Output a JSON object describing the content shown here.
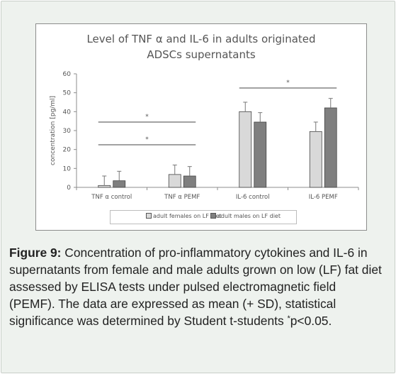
{
  "chart_data": {
    "type": "bar",
    "title_line1": "Level of TNF α and IL-6  in adults originated",
    "title_line2": "ADSCs supernatants",
    "ylabel": "concentration  [pg/ml]",
    "xlabel": "",
    "ylim": [
      0,
      60
    ],
    "yticks": [
      "0",
      "10",
      "20",
      "30",
      "40",
      "50",
      "60"
    ],
    "categories": [
      "TNF α control",
      "TNF α PEMF",
      "IL-6 control",
      "IL-6 PEMF"
    ],
    "series": [
      {
        "name": "adult females on LF diet",
        "color": "#d9d9d9",
        "values": [
          1.0,
          6.8,
          40.0,
          29.5
        ],
        "sd": [
          5.0,
          5.0,
          5.0,
          5.0
        ]
      },
      {
        "name": "adult males on LF diet",
        "color": "#7f7f7f",
        "values": [
          3.5,
          6.0,
          34.5,
          42.0
        ],
        "sd": [
          5.0,
          5.0,
          5.0,
          5.0
        ]
      }
    ],
    "significance": [
      {
        "label": "*",
        "from_category": 0,
        "to_category": 1,
        "level": 22.5
      },
      {
        "label": "*",
        "from_category": 0,
        "to_category": 1,
        "level": 34.5
      },
      {
        "label": "*",
        "from_category": 2,
        "to_category": 3,
        "level": 52.5
      }
    ],
    "grid": false,
    "legend_position": "bottom"
  },
  "caption": {
    "label": "Figure 9:",
    "text": " Concentration of pro-inflammatory cytokines and IL-6 in supernatants from female and male adults grown on low (LF) fat diet assessed by ELISA tests under pulsed electromagnetic field (PEMF). The data are expressed as mean (+ SD), statistical significance was determined by Student t-students ",
    "superscript": "*",
    "tail": "p<0.05."
  }
}
